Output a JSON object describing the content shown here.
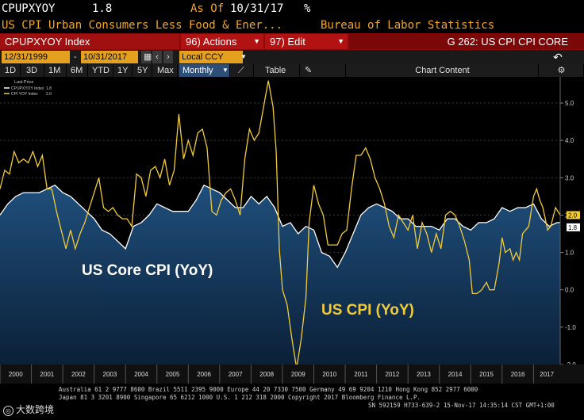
{
  "header": {
    "ticker": "CPUPXYOY",
    "last_value": "1.8",
    "as_of_label": "As Of",
    "as_of_date": "10/31/17",
    "unit_symbol": "%"
  },
  "description": {
    "security_name": "US CPI Urban Consumers Less Food & Ener...",
    "source": "Bureau of Labor Statistics"
  },
  "toolbar": {
    "index_label": "CPUPXYOY Index",
    "actions_num": "96)",
    "actions_label": "Actions",
    "edit_num": "97)",
    "edit_label": "Edit",
    "function_label": "G 262: US CPI CPI CORE"
  },
  "date_range": {
    "start": "12/31/1999",
    "separator": "-",
    "end": "10/31/2017",
    "currency": "Local CCY"
  },
  "range_buttons": [
    {
      "label": "1D"
    },
    {
      "label": "3D"
    },
    {
      "label": "1M"
    },
    {
      "label": "6M"
    },
    {
      "label": "YTD"
    },
    {
      "label": "1Y"
    },
    {
      "label": "5Y"
    },
    {
      "label": "Max"
    }
  ],
  "periodicity": "Monthly",
  "view_buttons": {
    "table": "Table",
    "chart_content": "Chart Content"
  },
  "colors": {
    "core_line": "#ffffff",
    "cpi_line": "#f1cb3a",
    "area_fill_top": "#1f4f7c",
    "area_fill_bottom": "#0b2038",
    "background": "#000000",
    "amber": "#f5a623",
    "red_bar": "#8c0a0a"
  },
  "chart_data": {
    "type": "line",
    "legend": {
      "title": "Last Price",
      "entries": [
        {
          "name": "CPUPXYOY Index",
          "value": "1.8"
        },
        {
          "name": "CPI YOY Index",
          "value": "2.0"
        }
      ]
    },
    "annotations": [
      {
        "text": "US Core CPI (YoY)"
      },
      {
        "text": "US CPI (YoY)"
      }
    ],
    "last_labels": [
      {
        "series": "CPI YOY Index",
        "value": "2.0"
      },
      {
        "series": "CPUPXYOY Index",
        "value": "1.8"
      }
    ],
    "ylim": [
      -2.0,
      5.7
    ],
    "yticks": [
      "5.0",
      "4.0",
      "3.0",
      "2.0",
      "1.0",
      "0.0",
      "-1.0",
      "-2.0"
    ],
    "yticks_values": [
      5,
      4,
      3,
      2,
      1,
      0,
      -1,
      -2
    ],
    "xlim": [
      2000.0,
      2017.85
    ],
    "xticks": [
      "2000",
      "2001",
      "2002",
      "2003",
      "2004",
      "2005",
      "2006",
      "2007",
      "2008",
      "2009",
      "2010",
      "2011",
      "2012",
      "2013",
      "2014",
      "2015",
      "2016",
      "2017"
    ],
    "series": [
      {
        "name": "CPUPXYOY Index",
        "fill": true,
        "points": [
          [
            2000.0,
            2.0
          ],
          [
            2000.25,
            2.3
          ],
          [
            2000.5,
            2.5
          ],
          [
            2000.75,
            2.6
          ],
          [
            2001.0,
            2.6
          ],
          [
            2001.25,
            2.6
          ],
          [
            2001.5,
            2.7
          ],
          [
            2001.75,
            2.8
          ],
          [
            2002.0,
            2.6
          ],
          [
            2002.25,
            2.5
          ],
          [
            2002.5,
            2.3
          ],
          [
            2002.75,
            2.1
          ],
          [
            2003.0,
            1.9
          ],
          [
            2003.25,
            1.6
          ],
          [
            2003.5,
            1.5
          ],
          [
            2003.75,
            1.3
          ],
          [
            2004.0,
            1.1
          ],
          [
            2004.25,
            1.7
          ],
          [
            2004.5,
            1.8
          ],
          [
            2004.75,
            2.0
          ],
          [
            2005.0,
            2.3
          ],
          [
            2005.25,
            2.2
          ],
          [
            2005.5,
            2.1
          ],
          [
            2005.75,
            2.1
          ],
          [
            2006.0,
            2.1
          ],
          [
            2006.25,
            2.4
          ],
          [
            2006.5,
            2.8
          ],
          [
            2006.75,
            2.7
          ],
          [
            2007.0,
            2.6
          ],
          [
            2007.25,
            2.4
          ],
          [
            2007.5,
            2.2
          ],
          [
            2007.75,
            2.2
          ],
          [
            2008.0,
            2.5
          ],
          [
            2008.25,
            2.3
          ],
          [
            2008.5,
            2.5
          ],
          [
            2008.75,
            2.2
          ],
          [
            2009.0,
            1.7
          ],
          [
            2009.25,
            1.8
          ],
          [
            2009.5,
            1.5
          ],
          [
            2009.75,
            1.7
          ],
          [
            2010.0,
            1.6
          ],
          [
            2010.25,
            1.0
          ],
          [
            2010.5,
            0.9
          ],
          [
            2010.75,
            0.6
          ],
          [
            2011.0,
            1.0
          ],
          [
            2011.25,
            1.5
          ],
          [
            2011.5,
            2.0
          ],
          [
            2011.75,
            2.2
          ],
          [
            2012.0,
            2.3
          ],
          [
            2012.25,
            2.2
          ],
          [
            2012.5,
            2.1
          ],
          [
            2012.75,
            1.9
          ],
          [
            2013.0,
            1.9
          ],
          [
            2013.25,
            1.7
          ],
          [
            2013.5,
            1.7
          ],
          [
            2013.75,
            1.7
          ],
          [
            2014.0,
            1.6
          ],
          [
            2014.25,
            1.9
          ],
          [
            2014.5,
            1.9
          ],
          [
            2014.75,
            1.7
          ],
          [
            2015.0,
            1.6
          ],
          [
            2015.25,
            1.8
          ],
          [
            2015.5,
            1.8
          ],
          [
            2015.75,
            1.9
          ],
          [
            2016.0,
            2.2
          ],
          [
            2016.25,
            2.1
          ],
          [
            2016.5,
            2.2
          ],
          [
            2016.75,
            2.2
          ],
          [
            2017.0,
            2.3
          ],
          [
            2017.25,
            1.9
          ],
          [
            2017.5,
            1.7
          ],
          [
            2017.75,
            1.8
          ],
          [
            2017.85,
            1.8
          ]
        ]
      },
      {
        "name": "CPI YOY Index",
        "fill": false,
        "points": [
          [
            2000.0,
            2.7
          ],
          [
            2000.15,
            3.2
          ],
          [
            2000.3,
            3.1
          ],
          [
            2000.45,
            3.7
          ],
          [
            2000.6,
            3.4
          ],
          [
            2000.75,
            3.5
          ],
          [
            2000.9,
            3.4
          ],
          [
            2001.05,
            3.7
          ],
          [
            2001.2,
            3.3
          ],
          [
            2001.35,
            3.6
          ],
          [
            2001.5,
            2.7
          ],
          [
            2001.65,
            2.7
          ],
          [
            2001.8,
            2.1
          ],
          [
            2001.95,
            1.6
          ],
          [
            2002.1,
            1.1
          ],
          [
            2002.25,
            1.6
          ],
          [
            2002.4,
            1.1
          ],
          [
            2002.55,
            1.5
          ],
          [
            2002.7,
            1.8
          ],
          [
            2002.85,
            2.2
          ],
          [
            2003.0,
            2.6
          ],
          [
            2003.15,
            3.0
          ],
          [
            2003.3,
            2.2
          ],
          [
            2003.45,
            2.1
          ],
          [
            2003.6,
            2.2
          ],
          [
            2003.75,
            2.0
          ],
          [
            2003.9,
            1.9
          ],
          [
            2004.05,
            1.9
          ],
          [
            2004.2,
            1.7
          ],
          [
            2004.35,
            3.1
          ],
          [
            2004.5,
            3.0
          ],
          [
            2004.65,
            2.5
          ],
          [
            2004.8,
            3.2
          ],
          [
            2004.95,
            3.3
          ],
          [
            2005.1,
            3.0
          ],
          [
            2005.25,
            3.5
          ],
          [
            2005.4,
            2.8
          ],
          [
            2005.55,
            3.2
          ],
          [
            2005.7,
            4.7
          ],
          [
            2005.85,
            3.5
          ],
          [
            2006.0,
            4.0
          ],
          [
            2006.15,
            3.6
          ],
          [
            2006.3,
            4.2
          ],
          [
            2006.45,
            4.3
          ],
          [
            2006.6,
            3.8
          ],
          [
            2006.75,
            2.1
          ],
          [
            2006.9,
            2.0
          ],
          [
            2007.05,
            2.4
          ],
          [
            2007.2,
            2.6
          ],
          [
            2007.35,
            2.7
          ],
          [
            2007.5,
            2.4
          ],
          [
            2007.65,
            2.0
          ],
          [
            2007.8,
            3.5
          ],
          [
            2007.95,
            4.3
          ],
          [
            2008.1,
            4.0
          ],
          [
            2008.25,
            4.2
          ],
          [
            2008.4,
            4.9
          ],
          [
            2008.55,
            5.6
          ],
          [
            2008.7,
            4.9
          ],
          [
            2008.8,
            3.7
          ],
          [
            2008.9,
            1.1
          ],
          [
            2009.0,
            0.0
          ],
          [
            2009.15,
            -0.4
          ],
          [
            2009.3,
            -1.3
          ],
          [
            2009.45,
            -2.1
          ],
          [
            2009.6,
            -1.3
          ],
          [
            2009.75,
            -0.2
          ],
          [
            2009.85,
            1.8
          ],
          [
            2010.0,
            2.8
          ],
          [
            2010.15,
            2.3
          ],
          [
            2010.3,
            2.0
          ],
          [
            2010.45,
            1.2
          ],
          [
            2010.6,
            1.2
          ],
          [
            2010.75,
            1.2
          ],
          [
            2010.9,
            1.5
          ],
          [
            2011.05,
            1.6
          ],
          [
            2011.2,
            2.7
          ],
          [
            2011.35,
            3.6
          ],
          [
            2011.5,
            3.6
          ],
          [
            2011.65,
            3.8
          ],
          [
            2011.8,
            3.5
          ],
          [
            2011.95,
            3.0
          ],
          [
            2012.1,
            2.7
          ],
          [
            2012.25,
            2.3
          ],
          [
            2012.4,
            1.7
          ],
          [
            2012.55,
            1.4
          ],
          [
            2012.7,
            2.0
          ],
          [
            2012.85,
            1.8
          ],
          [
            2013.0,
            1.6
          ],
          [
            2013.15,
            2.0
          ],
          [
            2013.3,
            1.1
          ],
          [
            2013.45,
            1.8
          ],
          [
            2013.6,
            1.5
          ],
          [
            2013.75,
            1.0
          ],
          [
            2013.9,
            1.5
          ],
          [
            2014.05,
            1.1
          ],
          [
            2014.2,
            2.0
          ],
          [
            2014.35,
            2.1
          ],
          [
            2014.5,
            2.0
          ],
          [
            2014.65,
            1.7
          ],
          [
            2014.8,
            1.3
          ],
          [
            2014.95,
            0.8
          ],
          [
            2015.05,
            -0.1
          ],
          [
            2015.2,
            -0.1
          ],
          [
            2015.35,
            0.0
          ],
          [
            2015.5,
            0.2
          ],
          [
            2015.6,
            0.0
          ],
          [
            2015.75,
            0.0
          ],
          [
            2015.9,
            0.7
          ],
          [
            2016.0,
            1.4
          ],
          [
            2016.1,
            1.0
          ],
          [
            2016.25,
            1.1
          ],
          [
            2016.35,
            0.8
          ],
          [
            2016.45,
            1.0
          ],
          [
            2016.55,
            0.8
          ],
          [
            2016.65,
            1.5
          ],
          [
            2016.75,
            1.6
          ],
          [
            2016.85,
            1.7
          ],
          [
            2017.0,
            2.5
          ],
          [
            2017.1,
            2.7
          ],
          [
            2017.2,
            2.4
          ],
          [
            2017.3,
            2.2
          ],
          [
            2017.45,
            1.6
          ],
          [
            2017.55,
            1.7
          ],
          [
            2017.7,
            2.2
          ],
          [
            2017.85,
            2.0
          ]
        ]
      }
    ]
  },
  "footer": {
    "line1": "Australia 61 2 9777 8600 Brazil 5511 2395 9000 Europe 44 20 7330 7500 Germany 49 69 9204 1210 Hong Kong 852 2977 6000",
    "line2": "Japan 81 3 3201 8900        Singapore 65 6212 1000        U.S. 1 212 318 2000        Copyright 2017 Bloomberg Finance L.P.",
    "line3": "SN 592159 H733-639-2 15-Nov-17 14:35:14 CST  GMT+1:00",
    "watermark": "大数跨境"
  }
}
